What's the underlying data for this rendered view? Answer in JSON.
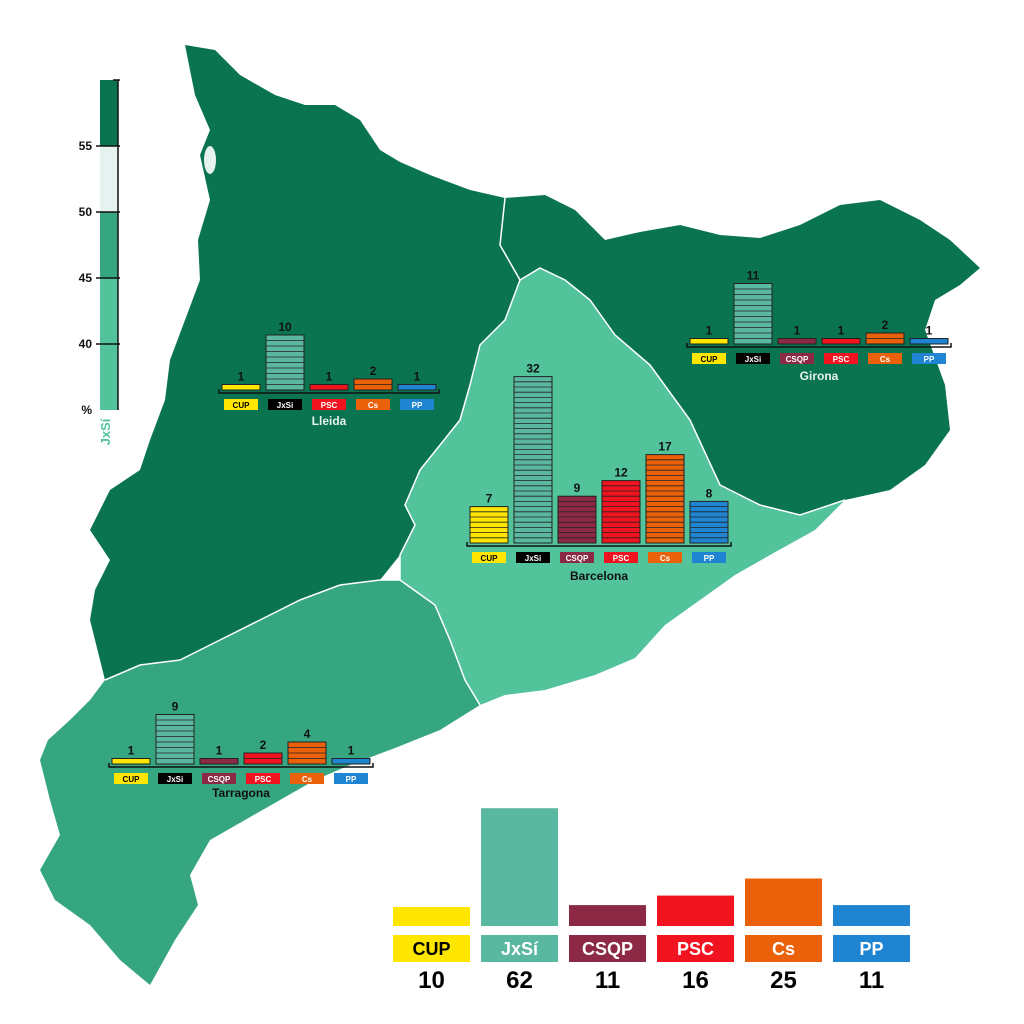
{
  "parties": [
    {
      "name": "CUP",
      "color": "#FFE600"
    },
    {
      "name": "JxSí",
      "color": "#5BB8A0"
    },
    {
      "name": "CSQP",
      "color": "#8C2A45"
    },
    {
      "name": "PSC",
      "color": "#F21320"
    },
    {
      "name": "Cs",
      "color": "#EB6109"
    },
    {
      "name": "PP",
      "color": "#1F84D1"
    }
  ],
  "legend_scale": {
    "unit_label": "%",
    "party_label": "JxSí",
    "ticks": [
      "40",
      "45",
      "50",
      "55"
    ],
    "bands": [
      {
        "range": [
          35,
          45
        ],
        "color": "#52C39A"
      },
      {
        "range": [
          45,
          50
        ],
        "color": "#36A680"
      },
      {
        "range": [
          50,
          55
        ],
        "color": "#E6F2EF"
      },
      {
        "range": [
          55,
          60
        ],
        "color": "#0A7450"
      }
    ]
  },
  "provinces": [
    {
      "name": "Lleida",
      "fill": "#0A7450",
      "label_names": [
        "CUP",
        "JxSi",
        "PSC",
        "Cs",
        "PP"
      ],
      "seats": [
        1,
        10,
        1,
        2,
        1
      ]
    },
    {
      "name": "Girona",
      "fill": "#0A7450",
      "label_names": [
        "CUP",
        "JxSi",
        "CSQP",
        "PSC",
        "Cs",
        "PP"
      ],
      "seats": [
        1,
        11,
        1,
        1,
        2,
        1
      ]
    },
    {
      "name": "Barcelona",
      "fill": "#52C39A",
      "label_names": [
        "CUP",
        "JxSi",
        "CSQP",
        "PSC",
        "Cs",
        "PP"
      ],
      "seats": [
        7,
        32,
        9,
        12,
        17,
        8
      ]
    },
    {
      "name": "Tarragona",
      "fill": "#36A680",
      "label_names": [
        "CUP",
        "JxSi",
        "CSQP",
        "PSC",
        "Cs",
        "PP"
      ],
      "seats": [
        1,
        9,
        1,
        2,
        4,
        1
      ]
    }
  ],
  "totals": {
    "labels": [
      "CUP",
      "JxSí",
      "CSQP",
      "PSC",
      "Cs",
      "PP"
    ],
    "seats": [
      10,
      62,
      11,
      16,
      25,
      11
    ]
  }
}
